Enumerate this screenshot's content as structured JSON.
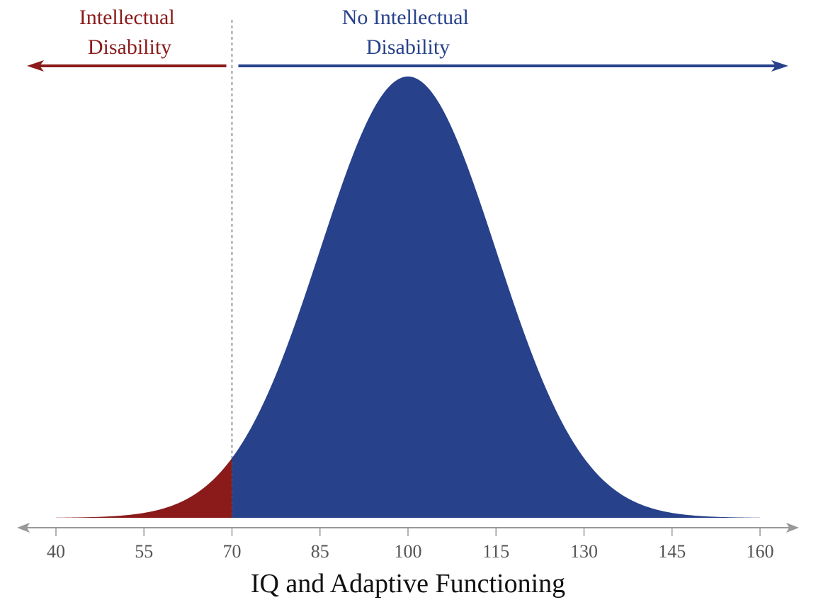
{
  "chart_data": {
    "type": "area",
    "title": "",
    "xlabel": "IQ and Adaptive Functioning",
    "ylabel": "",
    "xlim": [
      40,
      160
    ],
    "xticks": [
      40,
      55,
      70,
      85,
      100,
      115,
      130,
      145,
      160
    ],
    "distribution": {
      "shape": "normal",
      "mean": 100,
      "sd": 15
    },
    "threshold": 70,
    "regions": [
      {
        "name": "Intellectual Disability",
        "label_lines": [
          "Intellectual",
          "Disability"
        ],
        "range": [
          40,
          70
        ],
        "color": "#8b1a1a",
        "arrow_direction": "left"
      },
      {
        "name": "No Intellectual Disability",
        "label_lines": [
          "No Intellectual",
          "Disability"
        ],
        "range": [
          70,
          160
        ],
        "color": "#27418a",
        "arrow_direction": "right"
      }
    ],
    "axis_color": "#999999",
    "threshold_line_style": "dashed",
    "grid": false,
    "legend": "none"
  }
}
